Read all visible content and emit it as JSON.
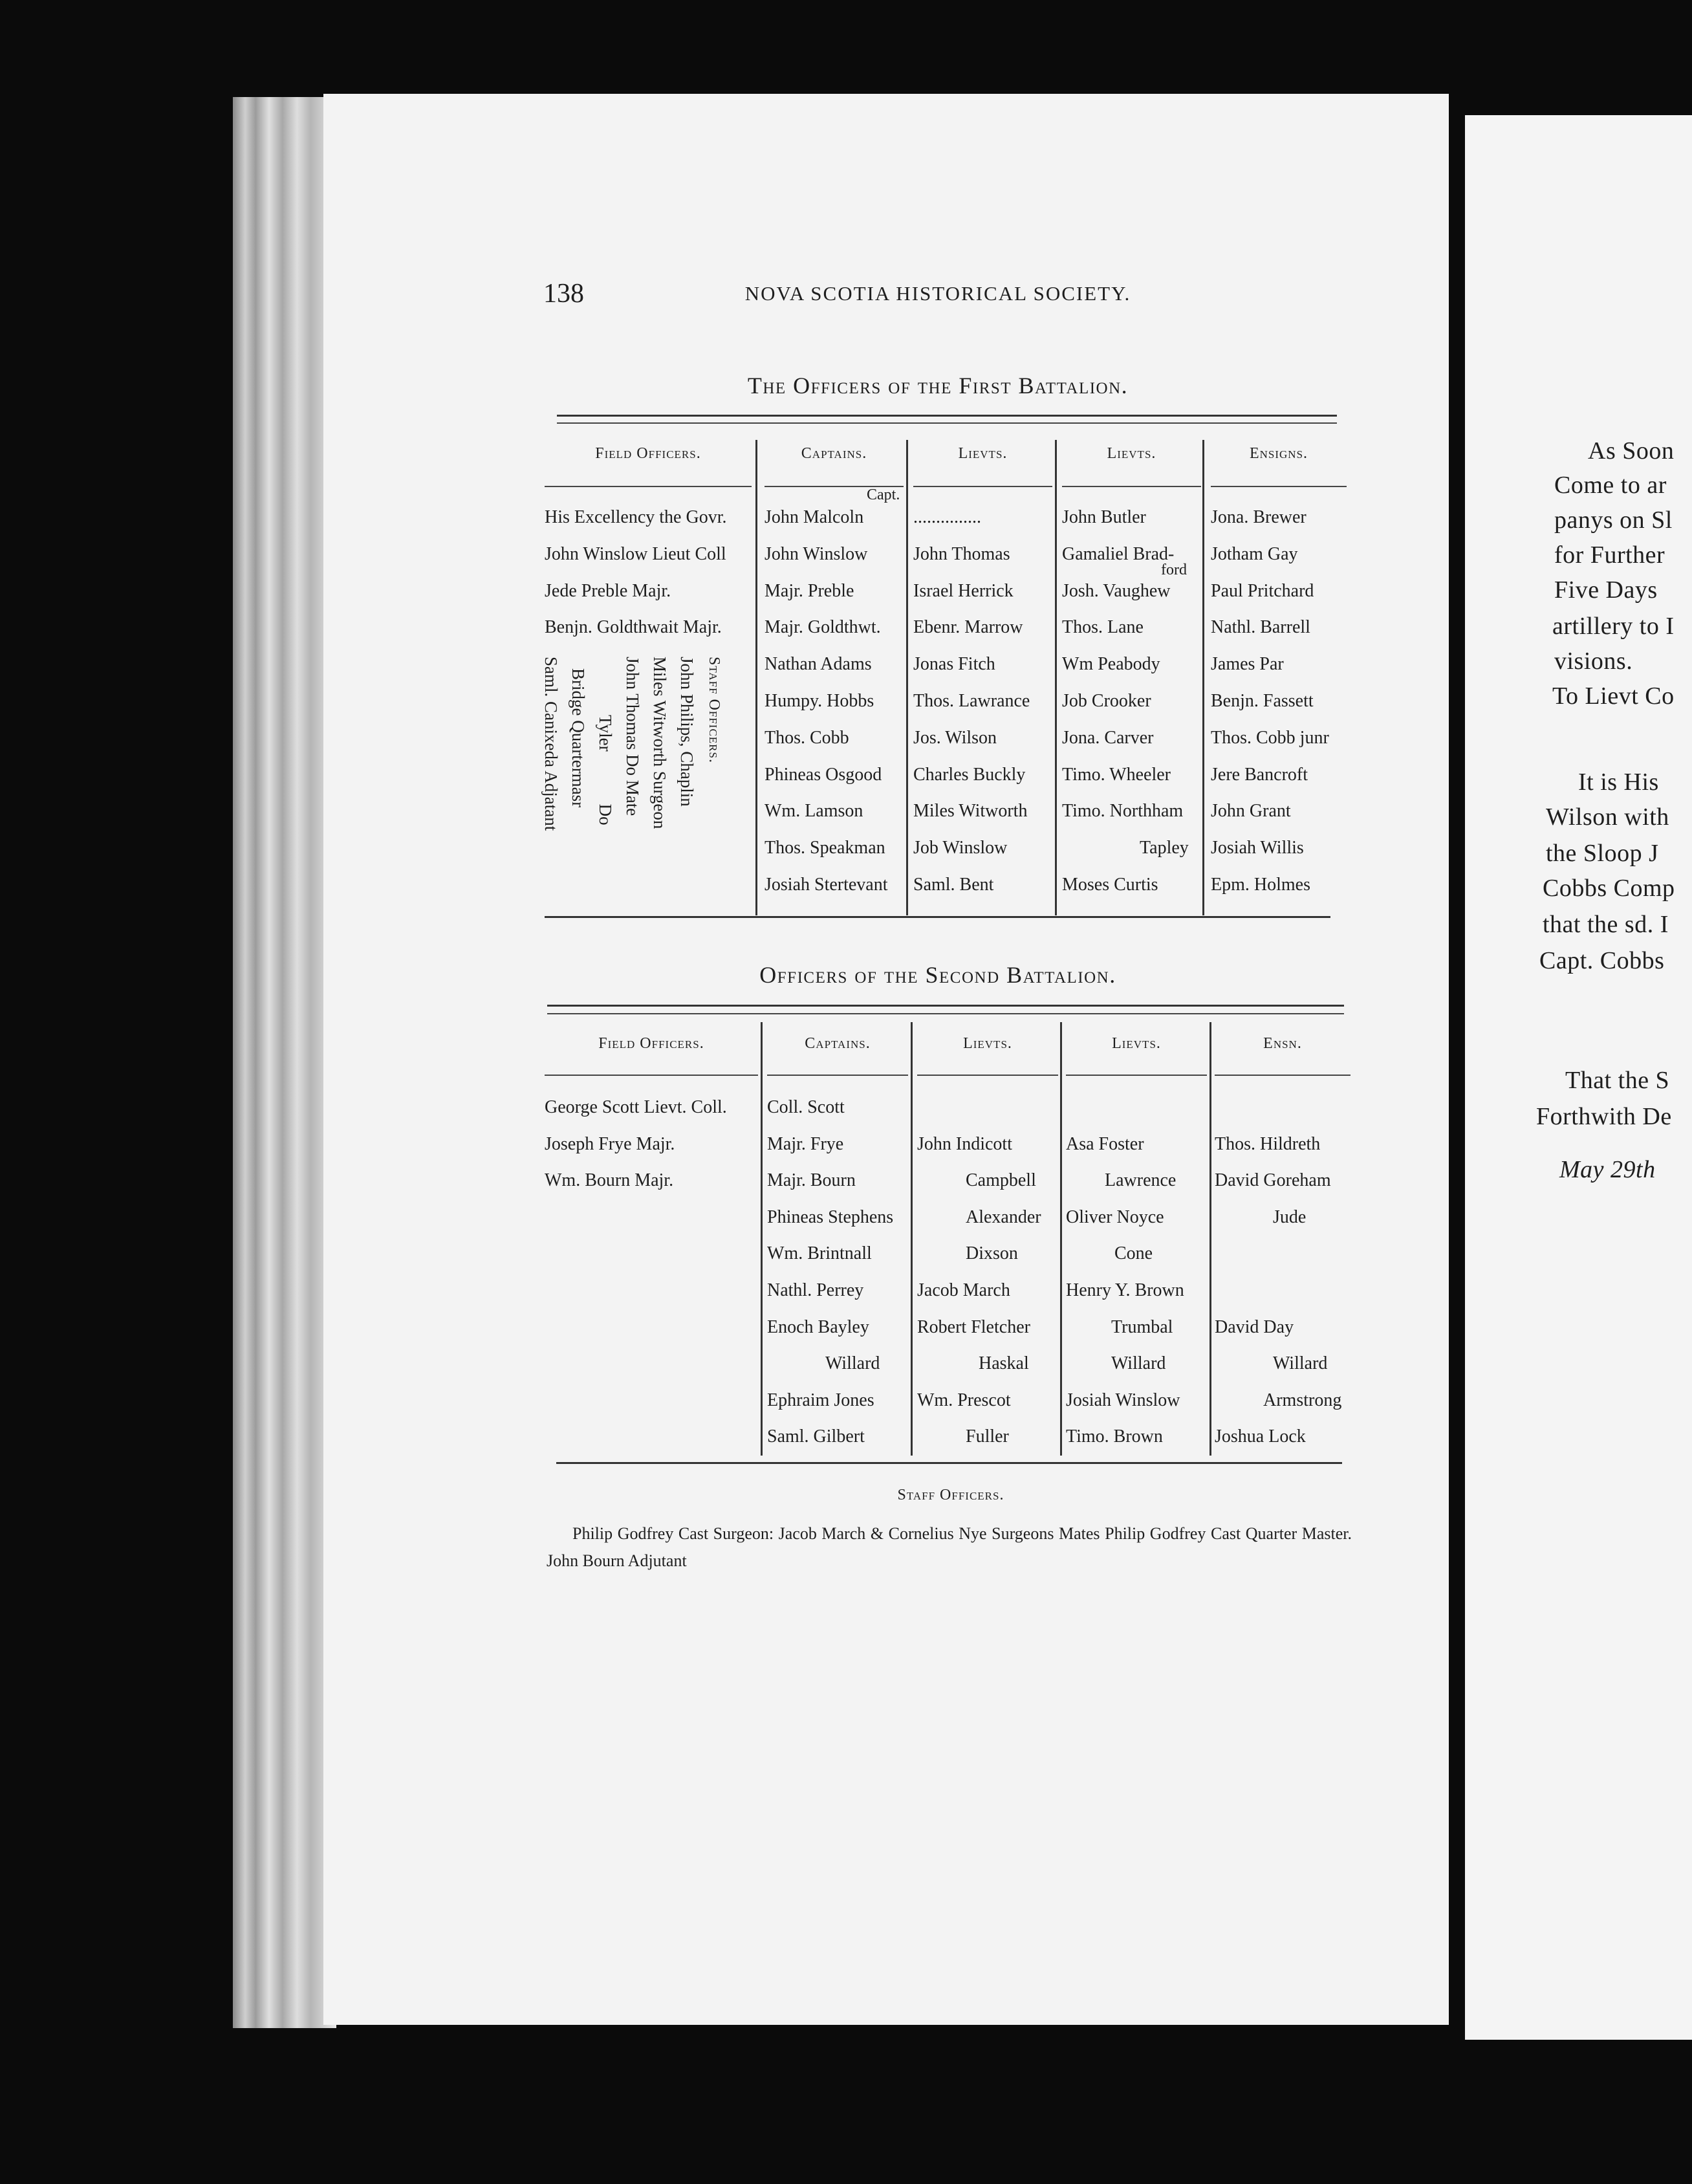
{
  "page_number": "138",
  "running_head": "NOVA SCOTIA HISTORICAL SOCIETY.",
  "first_battalion": {
    "title": "The Officers of the First Battalion.",
    "headers": [
      "Field Officers.",
      "Captains.",
      "Lievts.",
      "Lievts.",
      "Ensigns."
    ],
    "capt_note": "Capt.",
    "ford_note": "ford",
    "rows": [
      [
        "His Excellency the Govr.",
        "John Malcoln",
        "...............",
        "John Butler",
        "Jona. Brewer"
      ],
      [
        "John Winslow Lieut Coll",
        "John Winslow",
        "John Thomas",
        "Gamaliel Brad-",
        "Jotham Gay"
      ],
      [
        "Jede Preble Majr.",
        "Majr. Preble",
        "Israel Herrick",
        "Josh. Vaughew",
        "Paul Pritchard"
      ],
      [
        "Benjn. Goldthwait Majr.",
        "Majr. Goldthwt.",
        "Ebenr. Marrow",
        "Thos. Lane",
        "Nathl. Barrell"
      ],
      [
        "",
        "Nathan Adams",
        "Jonas Fitch",
        "Wm Peabody",
        "James Par"
      ],
      [
        "",
        "Humpy. Hobbs",
        "Thos. Lawrance",
        "Job Crooker",
        "Benjn. Fassett"
      ],
      [
        "",
        "Thos. Cobb",
        "Jos. Wilson",
        "Jona. Carver",
        "Thos. Cobb junr"
      ],
      [
        "",
        "Phineas Osgood",
        "Charles Buckly",
        "Timo. Wheeler",
        "Jere Bancroft"
      ],
      [
        "",
        "Wm. Lamson",
        "Miles Witworth",
        "Timo. Northham",
        "John Grant"
      ],
      [
        "",
        "Thos. Speakman",
        "Job Winslow",
        "Tapley",
        "Josiah Willis"
      ],
      [
        "",
        "Josiah Stertevant",
        "Saml. Bent",
        "Moses Curtis",
        "Epm. Holmes"
      ]
    ],
    "staff_officers": {
      "heading": "Staff Officers.",
      "lines": [
        "John Philips, Chaplin",
        "Miles Witworth Surgeon",
        "John Thomas Do Mate",
        "Tyler            Do",
        "Bridge Quartermasr",
        "Saml. Canixeda Adjatant"
      ]
    }
  },
  "second_battalion": {
    "title": "Officers of the Second Battalion.",
    "headers": [
      "Field Officers.",
      "Captains.",
      "Lievts.",
      "Lievts.",
      "Ensn."
    ],
    "rows": [
      [
        "George Scott Lievt. Coll.",
        "Coll. Scott",
        "",
        "",
        ""
      ],
      [
        "Joseph Frye Majr.",
        "Majr. Frye",
        "John Indicott",
        "Asa Foster",
        "Thos. Hildreth"
      ],
      [
        "Wm. Bourn Majr.",
        "Majr. Bourn",
        "Campbell",
        "Lawrence",
        "David Goreham"
      ],
      [
        "",
        "Phineas Stephens",
        "Alexander",
        "Oliver Noyce",
        "Jude"
      ],
      [
        "",
        "Wm. Brintnall",
        "Dixson",
        "Cone",
        ""
      ],
      [
        "",
        "Nathl. Perrey",
        "Jacob March",
        "Henry Y. Brown",
        ""
      ],
      [
        "",
        "Enoch Bayley",
        "Robert Fletcher",
        "Trumbal",
        "David Day"
      ],
      [
        "",
        "Willard",
        "Haskal",
        "Willard",
        "Willard"
      ],
      [
        "",
        "Ephraim Jones",
        "Wm. Prescot",
        "Josiah Winslow",
        "Armstrong"
      ],
      [
        "",
        "Saml. Gilbert",
        "Fuller",
        "Timo. Brown",
        "Joshua Lock"
      ]
    ],
    "staff_heading": "Staff Officers.",
    "staff_text": "Philip Godfrey Cast Surgeon:  Jacob March & Cornelius Nye Surgeons Mates   Philip Godfrey Cast Quarter Master.    John Bourn Adjutant"
  },
  "right_page": {
    "lines": [
      "As Soon",
      "Come to ar",
      "panys on Sl",
      "for Further",
      "Five Days",
      "artillery to I",
      "visions.",
      "To Lievt Co",
      "It is His",
      "Wilson with",
      "the Sloop J",
      "Cobbs Comp",
      "that the sd. I",
      "Capt. Cobbs",
      "That the S",
      "Forthwith De",
      "May 29th"
    ]
  }
}
